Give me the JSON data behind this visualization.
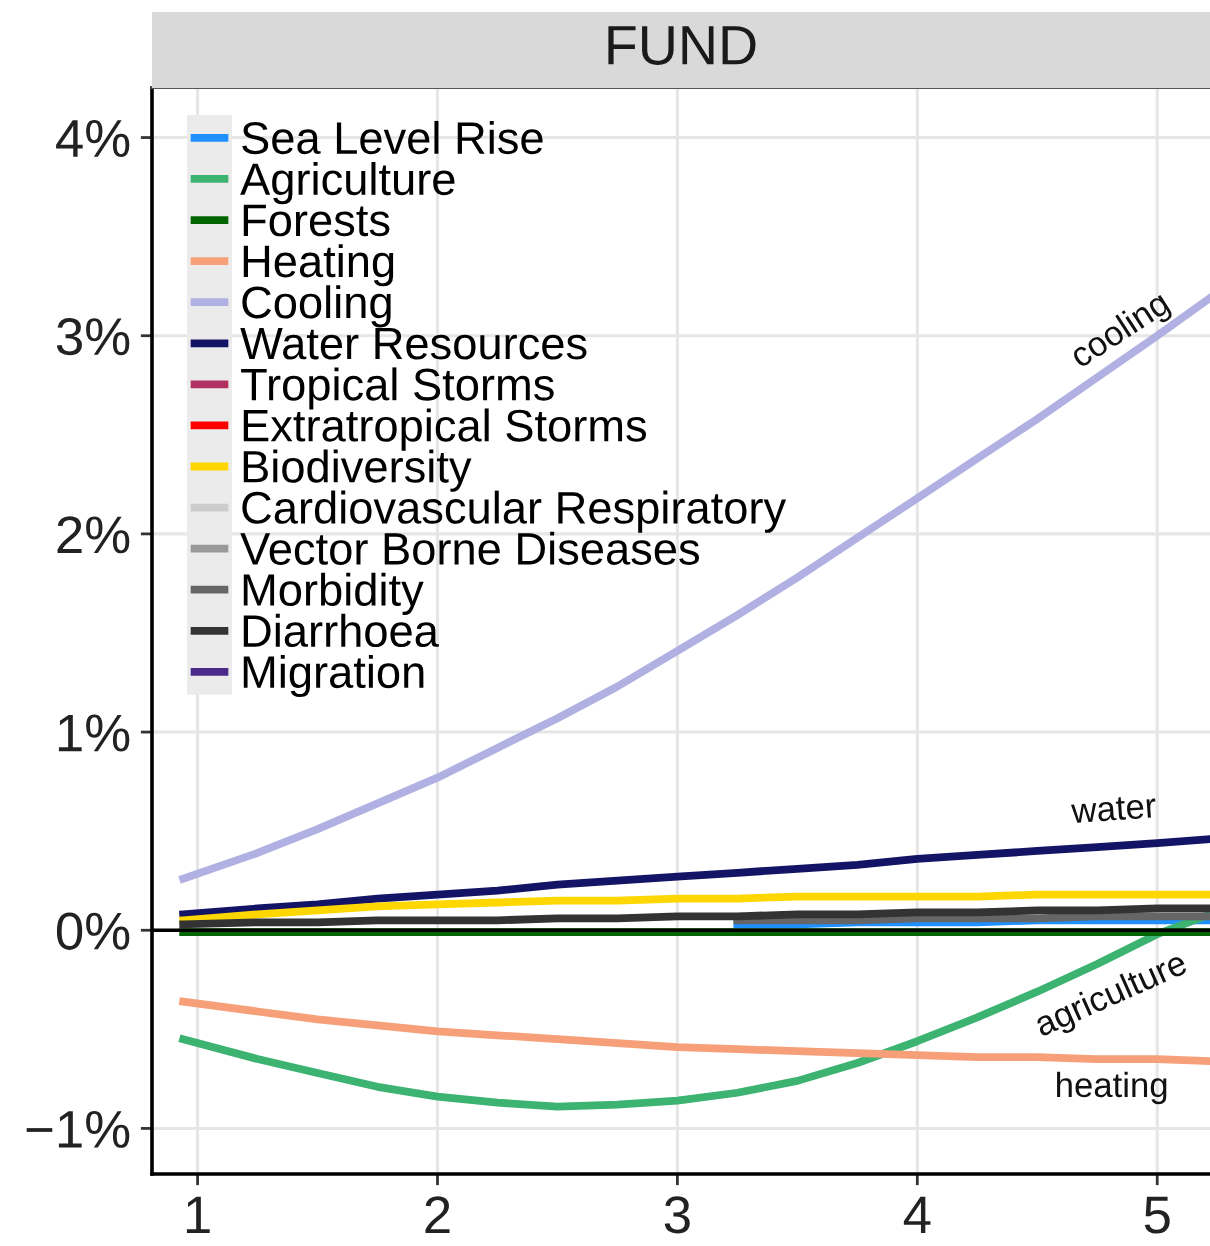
{
  "chart_data": {
    "type": "line",
    "title": "FUND",
    "x": [
      0.94,
      1.25,
      1.5,
      1.75,
      2,
      2.25,
      2.5,
      2.75,
      3,
      3.25,
      3.5,
      3.75,
      4,
      4.25,
      4.5,
      4.75,
      5,
      5.22
    ],
    "series": [
      {
        "name": "Sea Level Rise",
        "color": "#1e90ff",
        "values": [
          null,
          null,
          null,
          null,
          null,
          null,
          null,
          null,
          null,
          0.03,
          0.03,
          0.04,
          0.04,
          0.04,
          0.05,
          0.05,
          0.05,
          0.05
        ]
      },
      {
        "name": "Agriculture",
        "color": "#3cb371",
        "values": [
          -0.55,
          -0.65,
          -0.72,
          -0.79,
          -0.84,
          -0.87,
          -0.89,
          -0.88,
          -0.86,
          -0.82,
          -0.76,
          -0.67,
          -0.56,
          -0.44,
          -0.31,
          -0.17,
          -0.02,
          0.08
        ]
      },
      {
        "name": "Forests",
        "color": "#006400",
        "values": [
          -0.01,
          -0.01,
          -0.01,
          -0.01,
          -0.01,
          -0.01,
          -0.01,
          -0.01,
          -0.01,
          -0.01,
          -0.01,
          -0.01,
          -0.01,
          -0.01,
          -0.01,
          -0.01,
          -0.01,
          -0.01
        ]
      },
      {
        "name": "Heating",
        "color": "#f79f79",
        "values": [
          -0.36,
          -0.41,
          -0.45,
          -0.48,
          -0.51,
          -0.53,
          -0.55,
          -0.57,
          -0.59,
          -0.6,
          -0.61,
          -0.62,
          -0.63,
          -0.64,
          -0.64,
          -0.65,
          -0.65,
          -0.66
        ]
      },
      {
        "name": "Cooling",
        "color": "#b0b0e2",
        "values": [
          0.26,
          0.39,
          0.51,
          0.64,
          0.77,
          0.92,
          1.07,
          1.23,
          1.41,
          1.59,
          1.78,
          1.98,
          2.18,
          2.38,
          2.58,
          2.79,
          3.0,
          3.19
        ]
      },
      {
        "name": "Water Resources",
        "color": "#141466",
        "values": [
          0.08,
          0.11,
          0.13,
          0.16,
          0.18,
          0.2,
          0.23,
          0.25,
          0.27,
          0.29,
          0.31,
          0.33,
          0.36,
          0.38,
          0.4,
          0.42,
          0.44,
          0.46
        ]
      },
      {
        "name": "Tropical Storms",
        "color": "#b03060",
        "values": [
          null,
          null,
          null,
          null,
          null,
          null,
          null,
          null,
          null,
          null,
          null,
          null,
          null,
          null,
          null,
          null,
          null,
          null
        ]
      },
      {
        "name": "Extratropical Storms",
        "color": "#ff0000",
        "values": [
          null,
          null,
          null,
          null,
          null,
          null,
          null,
          null,
          null,
          null,
          null,
          null,
          null,
          null,
          null,
          null,
          null,
          null
        ]
      },
      {
        "name": "Biodiversity",
        "color": "#ffd700",
        "values": [
          0.05,
          0.08,
          0.1,
          0.12,
          0.13,
          0.14,
          0.15,
          0.15,
          0.16,
          0.16,
          0.17,
          0.17,
          0.17,
          0.17,
          0.18,
          0.18,
          0.18,
          0.18
        ]
      },
      {
        "name": "Cardiovascular Respiratory",
        "color": "#cccccc",
        "values": [
          null,
          null,
          null,
          null,
          null,
          null,
          null,
          null,
          null,
          null,
          null,
          null,
          null,
          null,
          null,
          null,
          null,
          null
        ]
      },
      {
        "name": "Vector Borne Diseases",
        "color": "#999999",
        "values": [
          null,
          null,
          null,
          null,
          null,
          null,
          null,
          null,
          null,
          null,
          null,
          null,
          null,
          null,
          null,
          null,
          null,
          null
        ]
      },
      {
        "name": "Morbidity",
        "color": "#666666",
        "values": [
          null,
          null,
          null,
          null,
          null,
          null,
          null,
          null,
          null,
          0.05,
          0.05,
          0.05,
          0.06,
          0.06,
          0.06,
          0.07,
          0.07,
          0.07
        ]
      },
      {
        "name": "Diarrhoea",
        "color": "#333333",
        "values": [
          0.03,
          0.04,
          0.04,
          0.05,
          0.05,
          0.05,
          0.06,
          0.06,
          0.07,
          0.07,
          0.08,
          0.08,
          0.09,
          0.09,
          0.1,
          0.1,
          0.11,
          0.11
        ]
      },
      {
        "name": "Migration",
        "color": "#4b2a8a",
        "values": [
          null,
          null,
          null,
          null,
          null,
          null,
          null,
          null,
          null,
          null,
          null,
          null,
          null,
          null,
          null,
          null,
          null,
          null
        ]
      }
    ],
    "xlim": [
      0.81,
      5.22
    ],
    "xticks": [
      1,
      2,
      3,
      4,
      5
    ],
    "ylim": [
      -1.23,
      4.25
    ],
    "yticks": [
      {
        "value": -1,
        "label": "−1%"
      },
      {
        "value": 0,
        "label": "0%"
      },
      {
        "value": 1,
        "label": "1%"
      },
      {
        "value": 2,
        "label": "2%"
      },
      {
        "value": 3,
        "label": "3%"
      },
      {
        "value": 4,
        "label": "4%"
      }
    ],
    "grid": true,
    "legend": "top left",
    "ref_lines": [
      {
        "axis": "y",
        "value": 0,
        "color": "#000000"
      }
    ],
    "annotations": [
      {
        "text": "cooling",
        "x": 4.85,
        "y": 2.87
      },
      {
        "text": "water",
        "x": 4.82,
        "y": 0.43
      },
      {
        "text": "agriculture",
        "x": 4.81,
        "y": -0.13
      },
      {
        "text": "heating",
        "x": 4.81,
        "y": -0.65
      }
    ]
  }
}
